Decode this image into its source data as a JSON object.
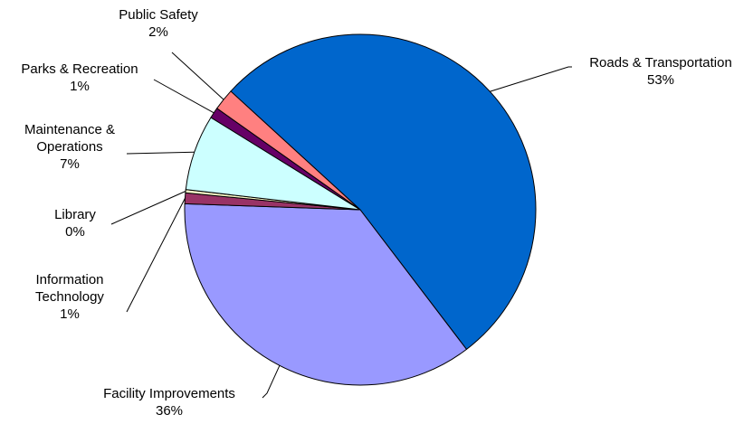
{
  "chart_data": {
    "type": "pie",
    "title": "",
    "slices": [
      {
        "name": "Roads & Transportation",
        "label_lines": [
          "Roads & Transportation"
        ],
        "value": 53,
        "pct_label": "53%",
        "color": "#0066CC"
      },
      {
        "name": "Facility Improvements",
        "label_lines": [
          "Facility Improvements"
        ],
        "value": 36,
        "pct_label": "36%",
        "color": "#9999FF"
      },
      {
        "name": "Information Technology",
        "label_lines": [
          "Information",
          "Technology"
        ],
        "value": 1,
        "pct_label": "1%",
        "color": "#993366"
      },
      {
        "name": "Library",
        "label_lines": [
          "Library"
        ],
        "value": 0.3,
        "pct_label": "0%",
        "color": "#FFFFCC"
      },
      {
        "name": "Maintenance & Operations",
        "label_lines": [
          "Maintenance &",
          "Operations"
        ],
        "value": 7,
        "pct_label": "7%",
        "color": "#CCFFFF"
      },
      {
        "name": "Parks & Recreation",
        "label_lines": [
          "Parks & Recreation"
        ],
        "value": 1,
        "pct_label": "1%",
        "color": "#660066"
      },
      {
        "name": "Public Safety",
        "label_lines": [
          "Public Safety"
        ],
        "value": 2,
        "pct_label": "2%",
        "color": "#FF8080"
      }
    ]
  }
}
